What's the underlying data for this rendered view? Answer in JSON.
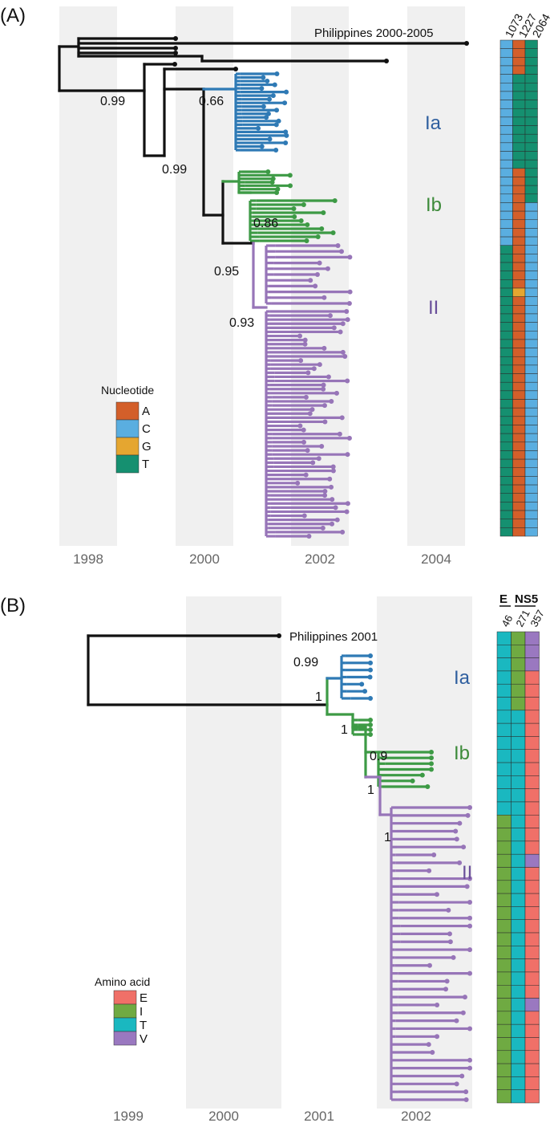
{
  "panelA": {
    "label": "(A)",
    "years": [
      "1998",
      "2000",
      "2002",
      "2004"
    ],
    "outgroup": "Philippines 2000-2005",
    "clades": {
      "Ia": "Ia",
      "Ib": "Ib",
      "II": "II"
    },
    "support": [
      "0.99",
      "0.66",
      "0.99",
      "0.86",
      "0.95",
      "0.93"
    ],
    "legend_title": "Nucleotide",
    "legend": [
      {
        "label": "A",
        "color": "#d35f2a"
      },
      {
        "label": "C",
        "color": "#5aaee0"
      },
      {
        "label": "G",
        "color": "#e5a630"
      },
      {
        "label": "T",
        "color": "#159070"
      }
    ],
    "positions": [
      "1073",
      "1227",
      "2064"
    ]
  },
  "panelB": {
    "label": "(B)",
    "years": [
      "1999",
      "2000",
      "2001",
      "2002"
    ],
    "outgroup": "Philippines 2001",
    "clades": {
      "Ia": "Ia",
      "Ib": "Ib",
      "II": "II"
    },
    "support": [
      "0.99",
      "1",
      "1",
      "0.9",
      "1",
      "1"
    ],
    "legend_title": "Amino acid",
    "legend": [
      {
        "label": "E",
        "color": "#f07068"
      },
      {
        "label": "I",
        "color": "#6faa42"
      },
      {
        "label": "T",
        "color": "#1ab8c0"
      },
      {
        "label": "V",
        "color": "#9a78c0"
      }
    ],
    "protein_E": "E",
    "protein_NS5": "NS5",
    "positions": [
      "46",
      "271",
      "357"
    ]
  },
  "colors": {
    "cladeIa": "#2f7ab5",
    "cladeIb": "#3d9a45",
    "cladeII": "#9775b8",
    "backbone": "#111111",
    "band": "#f0f0f0"
  }
}
